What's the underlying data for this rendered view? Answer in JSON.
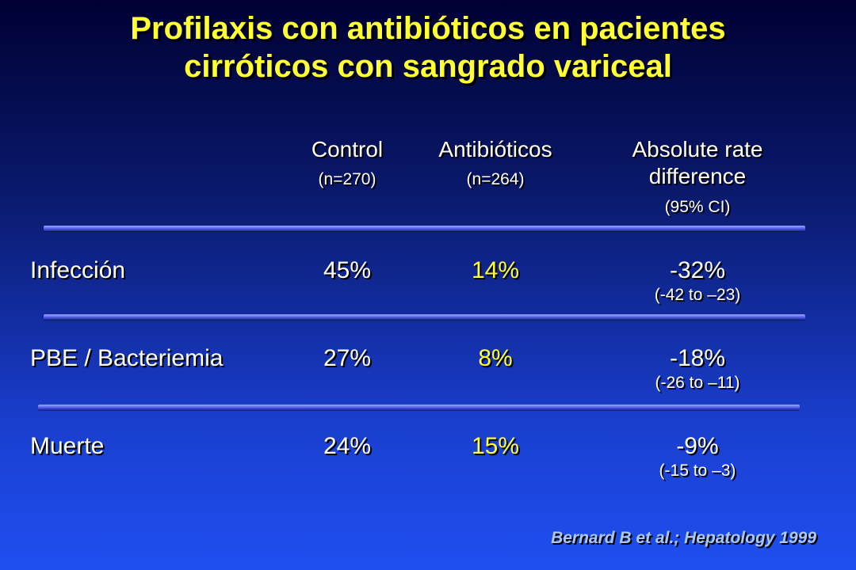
{
  "title": {
    "line1": "Profilaxis con antibióticos en pacientes",
    "line2": "cirróticos con sangrado variceal"
  },
  "columns": {
    "control": {
      "label": "Control",
      "n": "(n=270)"
    },
    "antibiotics": {
      "label": "Antibióticos",
      "n": "(n=264)"
    },
    "difference": {
      "label_line1": "Absolute rate",
      "label_line2": "difference",
      "ci": "(95% CI)"
    }
  },
  "rows": [
    {
      "label": "Infección",
      "control": "45%",
      "antibiotics": "14%",
      "difference": "-32%",
      "ci": "(-42 to –23)"
    },
    {
      "label": "PBE / Bacteriemia",
      "control": "27%",
      "antibiotics": "8%",
      "difference": "-18%",
      "ci": "(-26 to –11)"
    },
    {
      "label": "Muerte",
      "control": "24%",
      "antibiotics": "15%",
      "difference": "-9%",
      "ci": "(-15 to –3)"
    }
  ],
  "citation": "Bernard B et al.; Hepatology 1999",
  "colors": {
    "title": "#ffff33",
    "antibiotics_values": "#ffff33",
    "text": "#ffffff",
    "citation": "#a8c8ff"
  }
}
